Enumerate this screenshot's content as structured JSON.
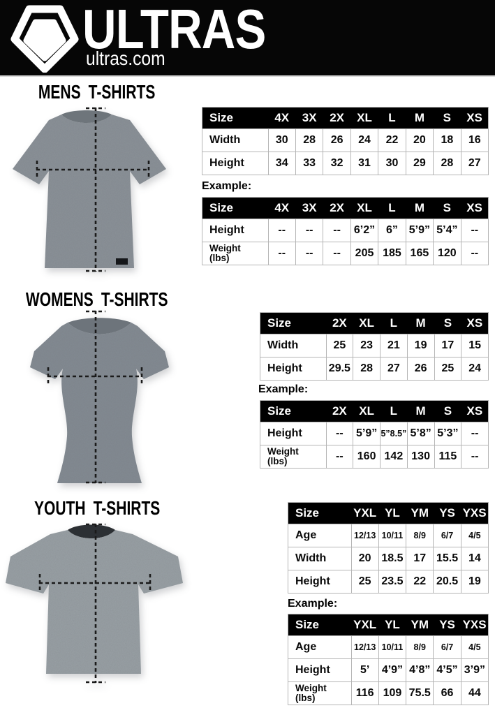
{
  "colors": {
    "header_bg": "#060606",
    "table_header_bg": "#000000",
    "table_border": "#b5b5b5",
    "dash_line": "#1a1a1a",
    "shirt_mens": "#8b9298",
    "shirt_womens": "#838b93",
    "shirt_youth": "#9aa1a6"
  },
  "header": {
    "brand": "ULTRAS",
    "domain": "ultras.com",
    "logo_icon": "pentagon-logo-icon"
  },
  "sections": [
    {
      "id": "mens",
      "title": "MENS T-SHIRTS",
      "example_label": "Example:",
      "size_table": {
        "header": [
          "Size",
          "4X",
          "3X",
          "2X",
          "XL",
          "L",
          "M",
          "S",
          "XS"
        ],
        "rows": [
          {
            "label": "Width",
            "values": [
              "30",
              "28",
              "26",
              "24",
              "22",
              "20",
              "18",
              "16"
            ]
          },
          {
            "label": "Height",
            "values": [
              "34",
              "33",
              "32",
              "31",
              "30",
              "29",
              "28",
              "27"
            ]
          }
        ]
      },
      "example_table": {
        "header": [
          "Size",
          "4X",
          "3X",
          "2X",
          "XL",
          "L",
          "M",
          "S",
          "XS"
        ],
        "rows": [
          {
            "label": "Height",
            "values": [
              "--",
              "--",
              "--",
              "6’2”",
              "6”",
              "5’9”",
              "5’4”",
              "--"
            ]
          },
          {
            "label": "Weight\n(lbs)",
            "values": [
              "--",
              "--",
              "--",
              "205",
              "185",
              "165",
              "120",
              "--"
            ]
          }
        ]
      }
    },
    {
      "id": "womens",
      "title": "WOMENS T-SHIRTS",
      "example_label": "Example:",
      "size_table": {
        "header": [
          "Size",
          "2X",
          "XL",
          "L",
          "M",
          "S",
          "XS"
        ],
        "rows": [
          {
            "label": "Width",
            "values": [
              "25",
              "23",
              "21",
              "19",
              "17",
              "15"
            ]
          },
          {
            "label": "Height",
            "values": [
              "29.5",
              "28",
              "27",
              "26",
              "25",
              "24"
            ]
          }
        ]
      },
      "example_table": {
        "header": [
          "Size",
          "2X",
          "XL",
          "L",
          "M",
          "S",
          "XS"
        ],
        "rows": [
          {
            "label": "Height",
            "values": [
              "--",
              "5’9”",
              "5”8.5”",
              "5’8”",
              "5’3”",
              "--"
            ]
          },
          {
            "label": "Weight\n(lbs)",
            "values": [
              "--",
              "160",
              "142",
              "130",
              "115",
              "--"
            ]
          }
        ]
      }
    },
    {
      "id": "youth",
      "title": "YOUTH T-SHIRTS",
      "example_label": "Example:",
      "size_table": {
        "header": [
          "Size",
          "YXL",
          "YL",
          "YM",
          "YS",
          "YXS"
        ],
        "rows": [
          {
            "label": "Age",
            "small": true,
            "values": [
              "12/13",
              "10/11",
              "8/9",
              "6/7",
              "4/5"
            ]
          },
          {
            "label": "Width",
            "values": [
              "20",
              "18.5",
              "17",
              "15.5",
              "14"
            ]
          },
          {
            "label": "Height",
            "values": [
              "25",
              "23.5",
              "22",
              "20.5",
              "19"
            ]
          }
        ]
      },
      "example_table": {
        "header": [
          "Size",
          "YXL",
          "YL",
          "YM",
          "YS",
          "YXS"
        ],
        "rows": [
          {
            "label": "Age",
            "small": true,
            "values": [
              "12/13",
              "10/11",
              "8/9",
              "6/7",
              "4/5"
            ]
          },
          {
            "label": "Height",
            "values": [
              "5’",
              "4’9”",
              "4’8”",
              "4’5”",
              "3’9”"
            ]
          },
          {
            "label": "Weight\n(lbs)",
            "values": [
              "116",
              "109",
              "75.5",
              "66",
              "44"
            ]
          }
        ]
      }
    }
  ]
}
